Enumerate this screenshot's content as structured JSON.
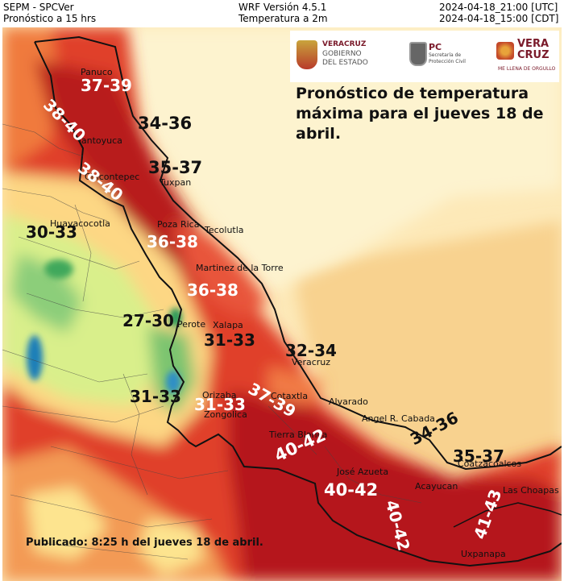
{
  "header": {
    "agency": "SEPM - SPCVer",
    "forecast_window": "Pronóstico a 15 hrs",
    "model": "WRF Versión 4.5.1",
    "variable": "Temperatura a 2m",
    "time_utc": "2024-04-18_21:00 [UTC]",
    "time_cdt": "2024-04-18_15:00 [CDT]"
  },
  "logos": {
    "veracruz_line1": "VERACRUZ",
    "veracruz_line2": "GOBIERNO",
    "veracruz_line3": "DEL ESTADO",
    "pc_title": "PC",
    "pc_line1": "Secretaría de",
    "pc_line2": "Protección Civil",
    "brand_line1": "VERA",
    "brand_line2": "CRUZ",
    "brand_tagline": "ME LLENA DE ORGULLO"
  },
  "title": "Pronóstico de temperatura máxima para el jueves 18 de abril.",
  "published": "Publicado: 8:25 h del jueves 18 de abril.",
  "ranges": [
    {
      "id": "panuco",
      "text": "37-39",
      "color": "white"
    },
    {
      "id": "huasteca-1",
      "text": "38-40",
      "color": "white"
    },
    {
      "id": "tampico-coast",
      "text": "34-36",
      "color": "black"
    },
    {
      "id": "tuxpan",
      "text": "35-37",
      "color": "black"
    },
    {
      "id": "huasteca-2",
      "text": "38-40",
      "color": "white"
    },
    {
      "id": "huayacocotla",
      "text": "30-33",
      "color": "black"
    },
    {
      "id": "poza-rica",
      "text": "36-38",
      "color": "white"
    },
    {
      "id": "martinez",
      "text": "36-38",
      "color": "white"
    },
    {
      "id": "perote",
      "text": "27-30",
      "color": "black"
    },
    {
      "id": "xalapa",
      "text": "31-33",
      "color": "black"
    },
    {
      "id": "veracruz-port",
      "text": "32-34",
      "color": "black"
    },
    {
      "id": "cotaxtla",
      "text": "37-39",
      "color": "white"
    },
    {
      "id": "orizaba-west",
      "text": "31-33",
      "color": "black"
    },
    {
      "id": "orizaba",
      "text": "31-33",
      "color": "white"
    },
    {
      "id": "cabada",
      "text": "34-36",
      "color": "black"
    },
    {
      "id": "coatzacoalcos",
      "text": "35-37",
      "color": "black"
    },
    {
      "id": "tierra-blanca",
      "text": "40-42",
      "color": "white"
    },
    {
      "id": "jose-azueta",
      "text": "40-42",
      "color": "white"
    },
    {
      "id": "acayucan",
      "text": "40-42",
      "color": "white"
    },
    {
      "id": "las-choapas",
      "text": "41-43",
      "color": "white"
    }
  ],
  "cities": {
    "panuco": "Panuco",
    "tantoyuca": "Tantoyuca",
    "chicontepec": "Chicontepec",
    "tuxpan": "Tuxpan",
    "huayacocotla": "Huayacocotla",
    "poza_rica": "Poza Rica",
    "tecolutla": "Tecolutla",
    "martinez": "Martinez de la Torre",
    "perote": "Perote",
    "xalapa": "Xalapa",
    "veracruz": "Veracruz",
    "orizaba": "Orizaba",
    "cotaxtla": "Cotaxtla",
    "zongolica": "Zongolica",
    "alvarado": "Alvarado",
    "tierra_blanca": "Tierra Blanca",
    "angel_cabada": "Angel R. Cabada",
    "jose_azueta": "José Azueta",
    "coatzacoalcos": "Coatzacoalcos",
    "acayucan": "Acayucan",
    "las_choapas": "Las Choapas",
    "uxpanapa": "Uxpanapa"
  },
  "colors": {
    "sea": "#fdf0c4",
    "sea_warm": "#f6d89a",
    "hot_dark": "#b5121b",
    "hot": "#d7301f",
    "warm": "#f46d43",
    "mild": "#fdae61",
    "cool": "#fee08b",
    "cooler": "#d9ef8b",
    "cold": "#66bd63",
    "coldest": "#1a7fb8"
  }
}
